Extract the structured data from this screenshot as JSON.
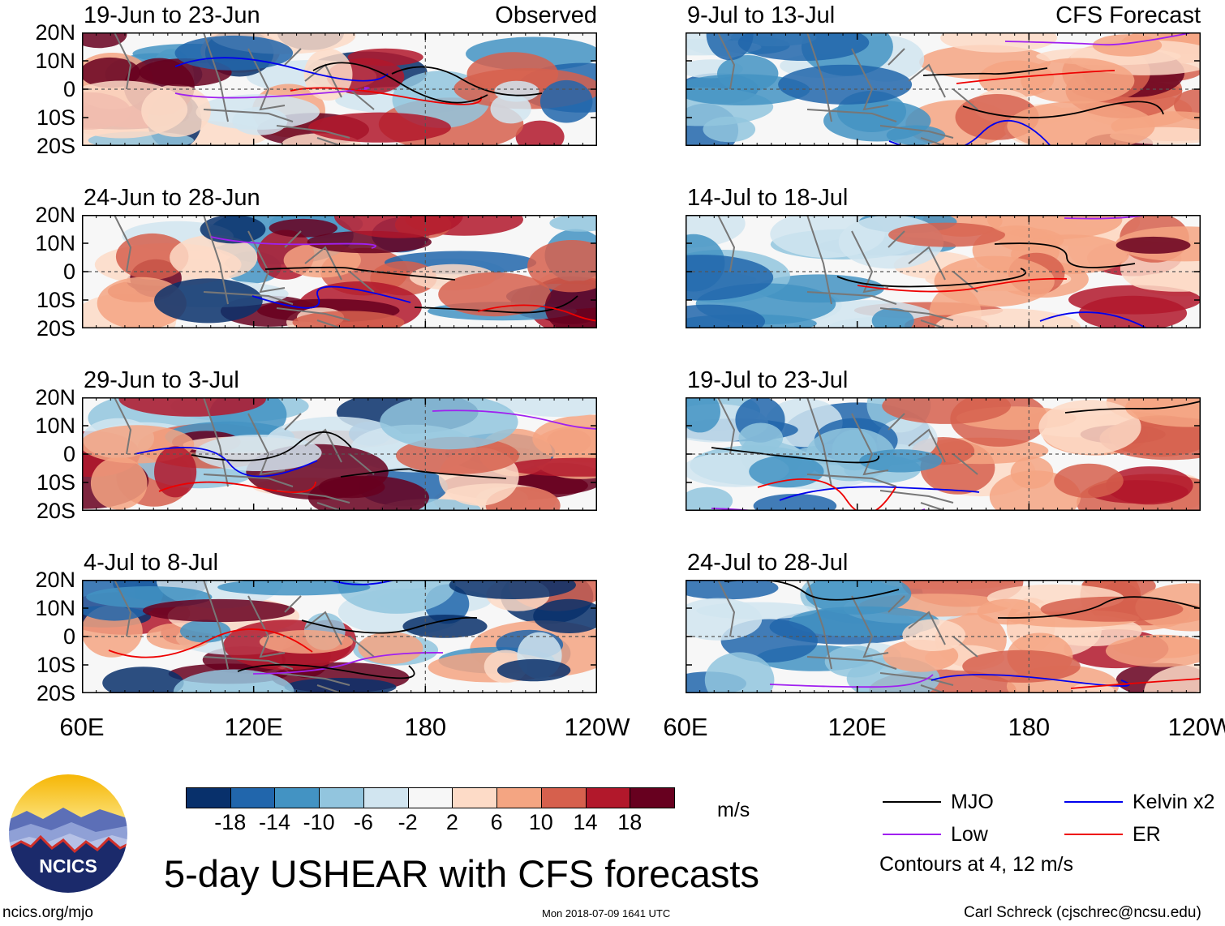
{
  "chart_data": {
    "type": "heatmap",
    "title": "5-day USHEAR with CFS forecasts",
    "units": "m/s",
    "columns": [
      {
        "heading": "Observed",
        "panels": [
          "19-Jun to 23-Jun",
          "24-Jun to 28-Jun",
          "29-Jun to 3-Jul",
          "4-Jul to 8-Jul"
        ]
      },
      {
        "heading": "CFS Forecast",
        "panels": [
          "9-Jul to 13-Jul",
          "14-Jul to 18-Jul",
          "19-Jul to 23-Jul",
          "24-Jul to 28-Jul"
        ]
      }
    ],
    "y_ticks": [
      "20N",
      "10N",
      "0",
      "10S",
      "20S"
    ],
    "y_range": [
      -20,
      20
    ],
    "x_ticks": [
      "60E",
      "120E",
      "180",
      "120W"
    ],
    "x_range": [
      60,
      240
    ],
    "colorbar": {
      "ticks": [
        "-18",
        "-14",
        "-10",
        "-6",
        "-2",
        "2",
        "6",
        "10",
        "14",
        "18"
      ],
      "colors": [
        "#08306b",
        "#2166ac",
        "#4393c3",
        "#92c5de",
        "#d1e5f0",
        "#f7f7f7",
        "#fddbc7",
        "#f4a582",
        "#d6604d",
        "#b2182b",
        "#67001f"
      ]
    },
    "legend": [
      {
        "label": "MJO",
        "color": "#000000"
      },
      {
        "label": "Kelvin x2",
        "color": "#0000ee"
      },
      {
        "label": "Low",
        "color": "#a020f0"
      },
      {
        "label": "ER",
        "color": "#ee0000"
      }
    ],
    "contour_note": "Contours at 4, 12 m/s"
  },
  "logo": {
    "text": "NCICS"
  },
  "footer": {
    "url": "ncics.org/mjo",
    "timestamp": "Mon 2018-07-09 1641 UTC",
    "author": "Carl Schreck (cjschrec@ncsu.edu)"
  }
}
